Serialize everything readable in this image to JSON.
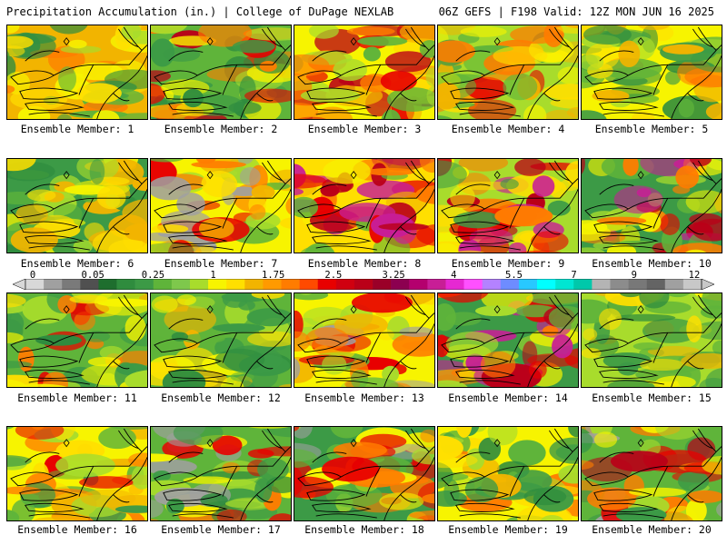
{
  "header": {
    "title": "Precipitation Accumulation (in.) | College of DuPage NEXLAB",
    "run_info": "06Z GEFS | F198 Valid: 12Z MON JUN 16 2025"
  },
  "members": [
    {
      "label": "Ensemble Member: 1",
      "palette": [
        "#f2b400",
        "#ffdf00",
        "#f7f400",
        "#a8dc2c",
        "#5fb43a",
        "#3c9a46",
        "#ff7c00",
        "#2f8c3e"
      ]
    },
    {
      "label": "Ensemble Member: 2",
      "palette": [
        "#5fb43a",
        "#3c9a46",
        "#a8dc2c",
        "#f7f400",
        "#ff7c00",
        "#e80000",
        "#ba0018",
        "#2f8c3e"
      ]
    },
    {
      "label": "Ensemble Member: 3",
      "palette": [
        "#f7f400",
        "#ffdf00",
        "#f2b400",
        "#ff7c00",
        "#e80000",
        "#a8dc2c",
        "#ba0018",
        "#5fb43a"
      ]
    },
    {
      "label": "Ensemble Member: 4",
      "palette": [
        "#a8dc2c",
        "#f7f400",
        "#5fb43a",
        "#ffdf00",
        "#3c9a46",
        "#f2b400",
        "#ff7c00",
        "#e80000"
      ]
    },
    {
      "label": "Ensemble Member: 5",
      "palette": [
        "#f7f400",
        "#a8dc2c",
        "#5fb43a",
        "#3c9a46",
        "#ffdf00",
        "#f2b400",
        "#ff7c00",
        "#2f8c3e"
      ]
    },
    {
      "label": "Ensemble Member: 6",
      "palette": [
        "#3c9a46",
        "#5fb43a",
        "#2f8c3e",
        "#a8dc2c",
        "#f7f400",
        "#ffdf00",
        "#f2b400",
        "#3c9a46"
      ]
    },
    {
      "label": "Ensemble Member: 7",
      "palette": [
        "#f7f400",
        "#a8dc2c",
        "#ffdf00",
        "#f2b400",
        "#ff7c00",
        "#e80000",
        "#5fb43a",
        "#a0a0a0"
      ]
    },
    {
      "label": "Ensemble Member: 8",
      "palette": [
        "#ffdf00",
        "#f2b400",
        "#ff7c00",
        "#e80000",
        "#ba0018",
        "#c81e96",
        "#f7f400",
        "#5fb43a"
      ]
    },
    {
      "label": "Ensemble Member: 9",
      "palette": [
        "#a8dc2c",
        "#f7f400",
        "#ff7c00",
        "#e80000",
        "#ba0018",
        "#c81e96",
        "#ffdf00",
        "#3c9a46"
      ]
    },
    {
      "label": "Ensemble Member: 10",
      "palette": [
        "#3c9a46",
        "#5fb43a",
        "#f7f400",
        "#ff7c00",
        "#e80000",
        "#ba0018",
        "#c81e96",
        "#a8dc2c"
      ]
    },
    {
      "label": "Ensemble Member: 11",
      "palette": [
        "#5fb43a",
        "#a8dc2c",
        "#f7f400",
        "#ff7c00",
        "#e80000",
        "#3c9a46",
        "#ffdf00",
        "#2f8c3e"
      ]
    },
    {
      "label": "Ensemble Member: 12",
      "palette": [
        "#5fb43a",
        "#3c9a46",
        "#a8dc2c",
        "#f7f400",
        "#ffdf00",
        "#2f8c3e",
        "#f2b400",
        "#5fb43a"
      ]
    },
    {
      "label": "Ensemble Member: 13",
      "palette": [
        "#f7f400",
        "#ffdf00",
        "#f2b400",
        "#ff7c00",
        "#a8dc2c",
        "#5fb43a",
        "#e80000",
        "#a0a0a0"
      ]
    },
    {
      "label": "Ensemble Member: 14",
      "palette": [
        "#3c9a46",
        "#5fb43a",
        "#a8dc2c",
        "#f7f400",
        "#ff7c00",
        "#e80000",
        "#ba0018",
        "#c81e96"
      ]
    },
    {
      "label": "Ensemble Member: 15",
      "palette": [
        "#a8dc2c",
        "#5fb43a",
        "#f7f400",
        "#3c9a46",
        "#ffdf00",
        "#2f8c3e",
        "#f2b400",
        "#5fb43a"
      ]
    },
    {
      "label": "Ensemble Member: 16",
      "palette": [
        "#f7f400",
        "#a8dc2c",
        "#ffdf00",
        "#5fb43a",
        "#f2b400",
        "#ff7c00",
        "#3c9a46",
        "#e80000"
      ]
    },
    {
      "label": "Ensemble Member: 17",
      "palette": [
        "#5fb43a",
        "#3c9a46",
        "#a8dc2c",
        "#f7f400",
        "#ff7c00",
        "#e80000",
        "#2f8c3e",
        "#a0a0a0"
      ]
    },
    {
      "label": "Ensemble Member: 18",
      "palette": [
        "#3c9a46",
        "#5fb43a",
        "#a8dc2c",
        "#f7f400",
        "#ff7c00",
        "#e80000",
        "#ba0018",
        "#a0a0a0"
      ]
    },
    {
      "label": "Ensemble Member: 19",
      "palette": [
        "#f7f400",
        "#a8dc2c",
        "#5fb43a",
        "#ffdf00",
        "#3c9a46",
        "#f2b400",
        "#2f8c3e",
        "#ff7c00"
      ]
    },
    {
      "label": "Ensemble Member: 20",
      "palette": [
        "#5fb43a",
        "#a8dc2c",
        "#3c9a46",
        "#f7f400",
        "#ff7c00",
        "#e80000",
        "#ba0018",
        "#a0a0a0"
      ]
    }
  ],
  "colorbar": {
    "tick_labels": [
      "0",
      "0.05",
      "0.25",
      "1",
      "1.75",
      "2.5",
      "3.25",
      "4",
      "5.5",
      "7",
      "9",
      "12"
    ],
    "colors": [
      "#d8d8d8",
      "#a0a0a0",
      "#7a7a7a",
      "#505050",
      "#1e6e2e",
      "#2f8c3e",
      "#3c9a46",
      "#5fb43a",
      "#7ec84c",
      "#a8dc2c",
      "#f7f400",
      "#ffdf00",
      "#f2b400",
      "#ff9a00",
      "#ff7c00",
      "#ff4a00",
      "#e80000",
      "#d00010",
      "#ba0018",
      "#9a0028",
      "#8c0050",
      "#b4006e",
      "#c81e96",
      "#e628d2",
      "#ff50ff",
      "#b482ff",
      "#6e8cff",
      "#28c8ff",
      "#00ffff",
      "#00e6d2",
      "#00c8aa",
      "#b4b4b4",
      "#8c8c8c",
      "#787878",
      "#646464",
      "#a0a0a0",
      "#c8c8c8"
    ]
  }
}
